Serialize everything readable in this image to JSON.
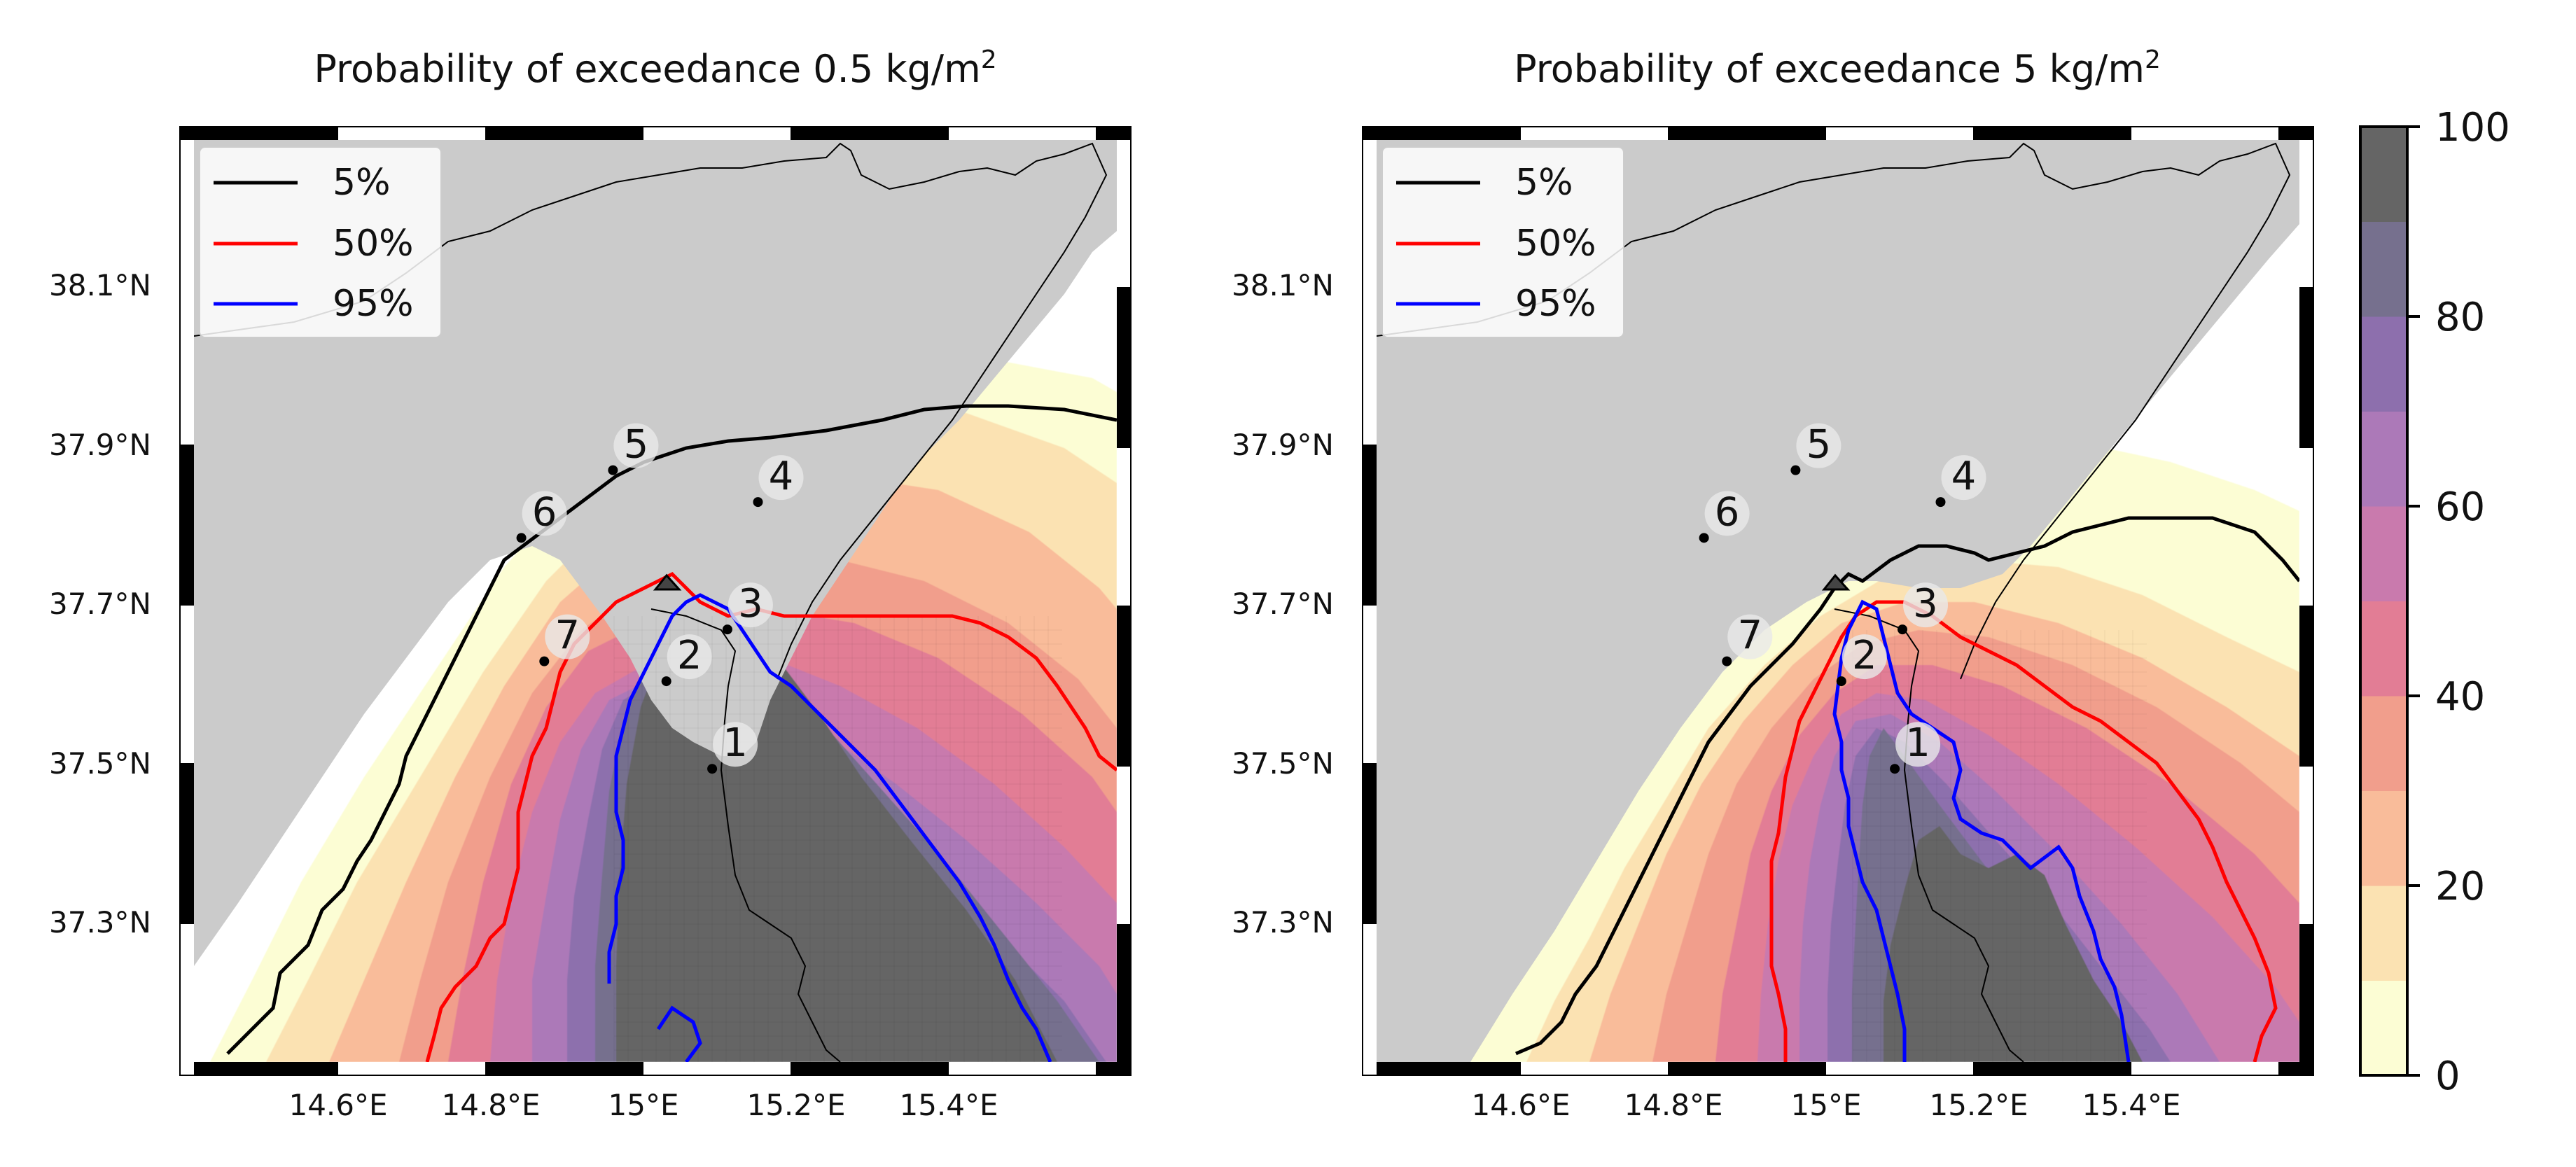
{
  "panels": [
    {
      "title_base": "Probability of exceedance 0.5 kg/m",
      "title_sup": "2",
      "legend": [
        "5%",
        "50%",
        "95%"
      ],
      "lat_ticks": [
        "38.1°N",
        "37.9°N",
        "37.7°N",
        "37.5°N",
        "37.3°N"
      ],
      "lon_ticks": [
        "14.6°E",
        "14.8°E",
        "15°E",
        "15.2°E",
        "15.4°E"
      ],
      "points": [
        {
          "label": "1",
          "lon": 15.09,
          "lat": 37.495
        },
        {
          "label": "2",
          "lon": 15.03,
          "lat": 37.605
        },
        {
          "label": "3",
          "lon": 15.11,
          "lat": 37.67
        },
        {
          "label": "4",
          "lon": 15.15,
          "lat": 37.83
        },
        {
          "label": "5",
          "lon": 14.96,
          "lat": 37.87
        },
        {
          "label": "6",
          "lon": 14.84,
          "lat": 37.785
        },
        {
          "label": "7",
          "lon": 14.87,
          "lat": 37.63
        }
      ],
      "vent": {
        "lon": 15.0,
        "lat": 37.745
      }
    },
    {
      "title_base": "Probability of exceedance 5 kg/m",
      "title_sup": "2",
      "legend": [
        "5%",
        "50%",
        "95%"
      ],
      "lat_ticks": [
        "38.1°N",
        "37.9°N",
        "37.7°N",
        "37.5°N",
        "37.3°N"
      ],
      "lon_ticks": [
        "14.6°E",
        "14.8°E",
        "15°E",
        "15.2°E",
        "15.4°E"
      ],
      "points": [
        {
          "label": "1",
          "lon": 15.09,
          "lat": 37.495
        },
        {
          "label": "2",
          "lon": 15.02,
          "lat": 37.605
        },
        {
          "label": "3",
          "lon": 15.1,
          "lat": 37.67
        },
        {
          "label": "4",
          "lon": 15.15,
          "lat": 37.83
        },
        {
          "label": "5",
          "lon": 14.96,
          "lat": 37.87
        },
        {
          "label": "6",
          "lon": 14.84,
          "lat": 37.785
        },
        {
          "label": "7",
          "lon": 14.87,
          "lat": 37.63
        }
      ],
      "vent": {
        "lon": 15.0,
        "lat": 37.745
      }
    }
  ],
  "colorbar": {
    "ticks": [
      "0",
      "20",
      "40",
      "60",
      "80",
      "100"
    ],
    "min": 0,
    "max": 100,
    "levels": 10,
    "colors": [
      "#fcfdd4",
      "#fbe2b2",
      "#f9bc9a",
      "#f19e8c",
      "#e27d95",
      "#c97aad",
      "#ac79b8",
      "#8d6fad",
      "#76708e",
      "#656565"
    ]
  },
  "colors": {
    "land": "#cbcbcb",
    "contour_5": "#000000",
    "contour_50": "#ff0000",
    "contour_95": "#0000ff"
  }
}
